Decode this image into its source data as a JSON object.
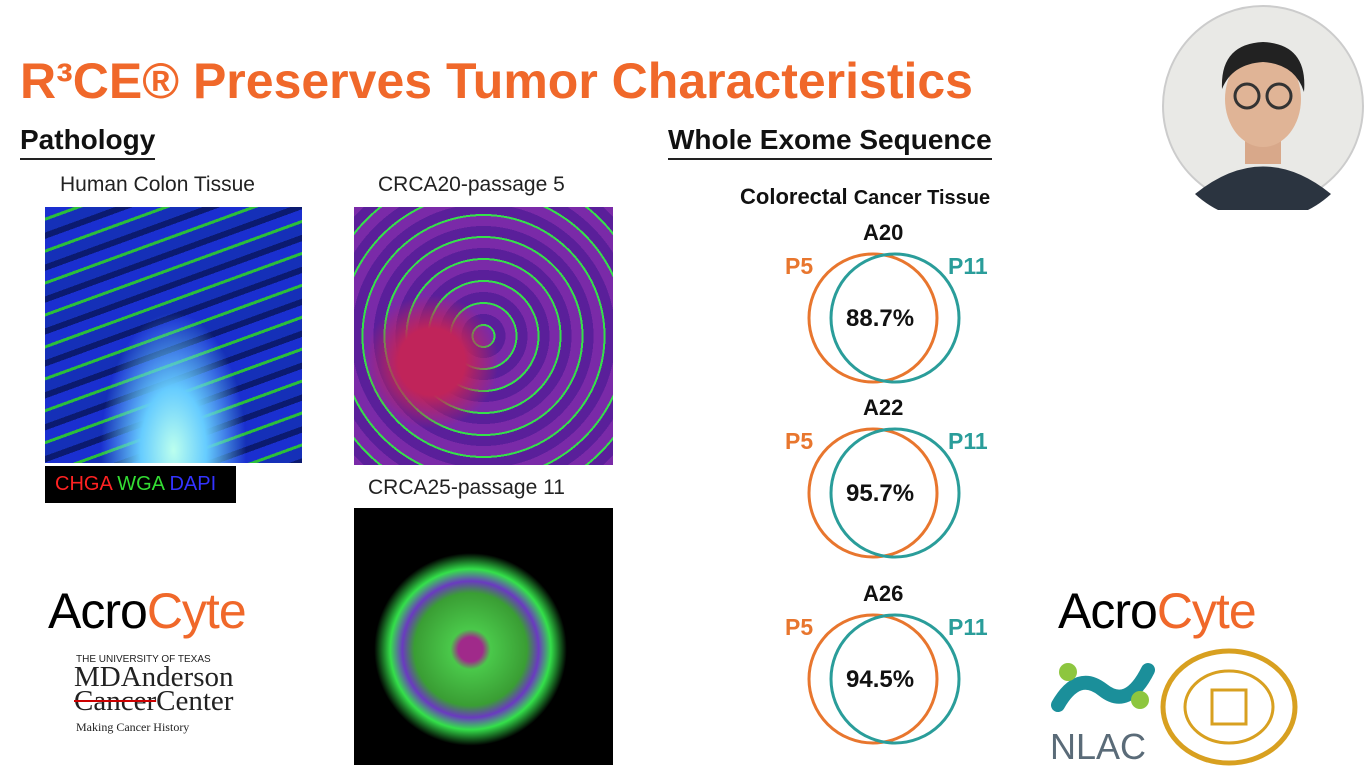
{
  "header": {
    "title": "R³CE® Preserves Tumor Characteristics"
  },
  "pathology": {
    "heading": "Pathology",
    "images": [
      {
        "label": "Human Colon Tissue"
      },
      {
        "label": "CRCA20-passage 5"
      },
      {
        "label": "CRCA25-passage 11"
      }
    ],
    "stain_legend": [
      "CHGA",
      "WGA",
      "DAPI"
    ]
  },
  "sequencing": {
    "heading": "Whole Exome Sequence",
    "subtitle_main": "Colorectal",
    "subtitle_rest": "Cancer Tissue",
    "venns": [
      {
        "sample": "A20",
        "left": "P5",
        "right": "P11",
        "overlap": "88.7%"
      },
      {
        "sample": "A22",
        "left": "P5",
        "right": "P11",
        "overlap": "95.7%"
      },
      {
        "sample": "A26",
        "left": "P5",
        "right": "P11",
        "overlap": "94.5%"
      }
    ]
  },
  "logos": {
    "acro": "Acro",
    "cyte": "Cyte",
    "ut": "THE UNIVERSITY OF TEXAS",
    "mda": "MDAnderson",
    "cancer": "Cancer",
    "center": "Center",
    "tagline": "Making Cancer History",
    "nlac": "NLAC"
  }
}
